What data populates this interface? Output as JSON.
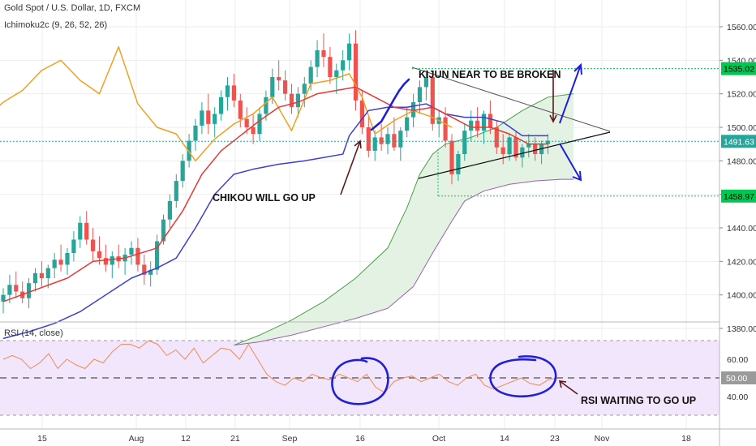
{
  "header": {
    "symbol_title": "Gold Spot / U.S. Dollar, 1D, FXCM",
    "indicator_title": "Ichimoku2c (9, 26, 52, 26)",
    "rsi_title": "RSI (14, close)"
  },
  "annotations": {
    "kijun_note": "KIJUN NEAR TO BE BROKEN",
    "chikou_note": "CHIKOU WILL GO UP",
    "rsi_note": "RSI WAITING TO GO UP"
  },
  "colors": {
    "bull": "#26a69a",
    "bear": "#ef5350",
    "tenkan": "#e53935",
    "kijun": "#3f3fcf",
    "chikou": "#f0a020",
    "kumo_fill": "#e3f2e3",
    "kumo_edge_a": "#43a047",
    "kumo_edge_b": "#9c5fb0",
    "rsi_line": "#f08a50",
    "rsi_band": "#f1e6fb",
    "level_line": "#00c853",
    "annotation_blue": "#1f1fd8",
    "annotation_brown": "#5a1a1a",
    "price_badge": "#26a69a",
    "level_badge": "#00c853"
  },
  "chart_data": [
    {
      "type": "candlestick",
      "title": "Gold Spot / U.S. Dollar, 1D, FXCM",
      "x_ticks": [
        "15",
        "Aug",
        "12",
        "21",
        "Sep",
        "16",
        "Oct",
        "14",
        "23",
        "Nov",
        "18"
      ],
      "y_ticks": [
        1380,
        1400,
        1420,
        1440,
        1460,
        1480,
        1500,
        1520,
        1540,
        1560
      ],
      "ylim": [
        1370,
        1570
      ],
      "grid": true,
      "current_price": "1491.63",
      "levels": [
        {
          "label": "1535.02",
          "value": 1535.02
        },
        {
          "label": "1458.97",
          "value": 1458.97
        }
      ],
      "candles": [
        [
          1396,
          1404,
          1389,
          1400
        ],
        [
          1400,
          1412,
          1395,
          1406
        ],
        [
          1406,
          1414,
          1398,
          1402
        ],
        [
          1402,
          1408,
          1395,
          1398
        ],
        [
          1398,
          1410,
          1392,
          1407
        ],
        [
          1407,
          1416,
          1402,
          1413
        ],
        [
          1413,
          1420,
          1405,
          1410
        ],
        [
          1410,
          1418,
          1404,
          1416
        ],
        [
          1416,
          1425,
          1410,
          1421
        ],
        [
          1421,
          1430,
          1414,
          1418
        ],
        [
          1418,
          1428,
          1412,
          1425
        ],
        [
          1425,
          1438,
          1420,
          1433
        ],
        [
          1433,
          1447,
          1428,
          1443
        ],
        [
          1443,
          1450,
          1430,
          1433
        ],
        [
          1433,
          1440,
          1420,
          1426
        ],
        [
          1426,
          1435,
          1418,
          1422
        ],
        [
          1422,
          1430,
          1414,
          1418
        ],
        [
          1418,
          1426,
          1410,
          1423
        ],
        [
          1423,
          1430,
          1416,
          1420
        ],
        [
          1420,
          1428,
          1412,
          1424
        ],
        [
          1424,
          1432,
          1418,
          1428
        ],
        [
          1428,
          1434,
          1414,
          1418
        ],
        [
          1418,
          1424,
          1406,
          1412
        ],
        [
          1412,
          1420,
          1405,
          1415
        ],
        [
          1415,
          1436,
          1412,
          1432
        ],
        [
          1432,
          1448,
          1430,
          1445
        ],
        [
          1445,
          1460,
          1440,
          1456
        ],
        [
          1456,
          1472,
          1452,
          1468
        ],
        [
          1468,
          1484,
          1464,
          1480
        ],
        [
          1480,
          1496,
          1476,
          1492
        ],
        [
          1492,
          1505,
          1486,
          1501
        ],
        [
          1501,
          1515,
          1496,
          1510
        ],
        [
          1510,
          1520,
          1496,
          1502
        ],
        [
          1502,
          1512,
          1494,
          1508
        ],
        [
          1508,
          1522,
          1504,
          1518
        ],
        [
          1518,
          1530,
          1510,
          1525
        ],
        [
          1525,
          1532,
          1512,
          1516
        ],
        [
          1516,
          1520,
          1500,
          1505
        ],
        [
          1505,
          1512,
          1496,
          1500
        ],
        [
          1500,
          1508,
          1490,
          1496
        ],
        [
          1496,
          1512,
          1492,
          1508
        ],
        [
          1508,
          1522,
          1504,
          1518
        ],
        [
          1518,
          1535,
          1514,
          1530
        ],
        [
          1530,
          1540,
          1522,
          1528
        ],
        [
          1528,
          1534,
          1516,
          1520
        ],
        [
          1520,
          1526,
          1508,
          1512
        ],
        [
          1512,
          1524,
          1506,
          1520
        ],
        [
          1520,
          1530,
          1512,
          1526
        ],
        [
          1526,
          1540,
          1522,
          1536
        ],
        [
          1536,
          1552,
          1530,
          1546
        ],
        [
          1546,
          1556,
          1536,
          1542
        ],
        [
          1542,
          1548,
          1526,
          1530
        ],
        [
          1530,
          1538,
          1520,
          1534
        ],
        [
          1534,
          1546,
          1528,
          1540
        ],
        [
          1540,
          1556,
          1534,
          1550
        ],
        [
          1550,
          1558,
          1510,
          1516
        ],
        [
          1516,
          1522,
          1496,
          1500
        ],
        [
          1500,
          1506,
          1482,
          1486
        ],
        [
          1486,
          1498,
          1480,
          1494
        ],
        [
          1494,
          1502,
          1486,
          1490
        ],
        [
          1490,
          1500,
          1484,
          1496
        ],
        [
          1496,
          1506,
          1486,
          1488
        ],
        [
          1488,
          1500,
          1480,
          1498
        ],
        [
          1498,
          1512,
          1494,
          1506
        ],
        [
          1506,
          1520,
          1500,
          1515
        ],
        [
          1515,
          1528,
          1508,
          1524
        ],
        [
          1524,
          1534,
          1516,
          1530
        ],
        [
          1530,
          1534,
          1498,
          1502
        ],
        [
          1502,
          1510,
          1494,
          1506
        ],
        [
          1506,
          1512,
          1488,
          1492
        ],
        [
          1492,
          1496,
          1466,
          1472
        ],
        [
          1472,
          1486,
          1468,
          1484
        ],
        [
          1484,
          1502,
          1480,
          1498
        ],
        [
          1498,
          1510,
          1492,
          1504
        ],
        [
          1504,
          1512,
          1494,
          1498
        ],
        [
          1498,
          1510,
          1490,
          1508
        ],
        [
          1508,
          1516,
          1496,
          1500
        ],
        [
          1500,
          1504,
          1484,
          1488
        ],
        [
          1488,
          1496,
          1478,
          1484
        ],
        [
          1484,
          1496,
          1480,
          1494
        ],
        [
          1494,
          1498,
          1480,
          1482
        ],
        [
          1482,
          1490,
          1476,
          1488
        ],
        [
          1488,
          1496,
          1482,
          1490
        ],
        [
          1490,
          1494,
          1480,
          1484
        ],
        [
          1484,
          1492,
          1478,
          1490
        ],
        [
          1490,
          1496,
          1484,
          1492
        ]
      ],
      "tenkan": [
        [
          0,
          1396
        ],
        [
          5,
          1403
        ],
        [
          10,
          1410
        ],
        [
          14,
          1420
        ],
        [
          19,
          1422
        ],
        [
          24,
          1428
        ],
        [
          28,
          1450
        ],
        [
          31,
          1472
        ],
        [
          34,
          1486
        ],
        [
          37,
          1495
        ],
        [
          40,
          1504
        ],
        [
          43,
          1512
        ],
        [
          46,
          1515
        ],
        [
          49,
          1520
        ],
        [
          52,
          1522
        ],
        [
          55,
          1524
        ],
        [
          58,
          1518
        ],
        [
          61,
          1512
        ],
        [
          64,
          1510
        ],
        [
          67,
          1512
        ],
        [
          70,
          1506
        ],
        [
          73,
          1500
        ],
        [
          76,
          1500
        ],
        [
          79,
          1496
        ],
        [
          82,
          1490
        ],
        [
          85,
          1490
        ]
      ],
      "kijun": [
        [
          0,
          1374
        ],
        [
          4,
          1378
        ],
        [
          8,
          1383
        ],
        [
          12,
          1390
        ],
        [
          16,
          1400
        ],
        [
          20,
          1410
        ],
        [
          24,
          1416
        ],
        [
          27,
          1422
        ],
        [
          30,
          1440
        ],
        [
          33,
          1460
        ],
        [
          36,
          1472
        ],
        [
          39,
          1475
        ],
        [
          43,
          1478
        ],
        [
          47,
          1480
        ],
        [
          50,
          1482
        ],
        [
          53,
          1484
        ],
        [
          54,
          1495
        ],
        [
          57,
          1510
        ],
        [
          60,
          1512
        ],
        [
          63,
          1512
        ],
        [
          66,
          1514
        ],
        [
          69,
          1508
        ],
        [
          72,
          1506
        ],
        [
          75,
          1506
        ],
        [
          78,
          1503
        ],
        [
          81,
          1495
        ],
        [
          85,
          1495
        ]
      ],
      "chikou": [
        [
          -2,
          1508
        ],
        [
          0,
          1515
        ],
        [
          3,
          1522
        ],
        [
          6,
          1534
        ],
        [
          9,
          1540
        ],
        [
          12,
          1528
        ],
        [
          15,
          1520
        ],
        [
          18,
          1548
        ],
        [
          21,
          1514
        ],
        [
          24,
          1500
        ],
        [
          27,
          1496
        ],
        [
          30,
          1480
        ],
        [
          33,
          1493
        ],
        [
          36,
          1502
        ],
        [
          39,
          1508
        ],
        [
          42,
          1518
        ],
        [
          45,
          1498
        ],
        [
          48,
          1526
        ],
        [
          51,
          1528
        ],
        [
          54,
          1532
        ],
        [
          56,
          1518
        ],
        [
          58,
          1496
        ],
        [
          61,
          1504
        ],
        [
          64,
          1510
        ],
        [
          67,
          1506
        ],
        [
          70,
          1500
        ]
      ],
      "kumo_a": [
        [
          36,
          1370
        ],
        [
          40,
          1376
        ],
        [
          45,
          1385
        ],
        [
          50,
          1396
        ],
        [
          55,
          1410
        ],
        [
          60,
          1428
        ],
        [
          63,
          1452
        ],
        [
          65,
          1472
        ],
        [
          67,
          1484
        ],
        [
          69,
          1490
        ],
        [
          73,
          1494
        ],
        [
          77,
          1500
        ],
        [
          81,
          1510
        ],
        [
          85,
          1518
        ],
        [
          89,
          1520
        ]
      ],
      "kumo_b": [
        [
          36,
          1370
        ],
        [
          40,
          1372
        ],
        [
          45,
          1376
        ],
        [
          50,
          1381
        ],
        [
          55,
          1386
        ],
        [
          60,
          1392
        ],
        [
          64,
          1405
        ],
        [
          67,
          1425
        ],
        [
          70,
          1444
        ],
        [
          72,
          1456
        ],
        [
          75,
          1462
        ],
        [
          79,
          1466
        ],
        [
          83,
          1468
        ],
        [
          87,
          1469
        ],
        [
          89,
          1469
        ]
      ]
    },
    {
      "type": "line",
      "title": "RSI (14, close)",
      "y_ticks": [
        40,
        50,
        60
      ],
      "ylim": [
        22,
        78
      ],
      "current_value": "50.00",
      "values": [
        [
          0,
          60
        ],
        [
          2,
          62
        ],
        [
          4,
          60
        ],
        [
          6,
          55
        ],
        [
          8,
          58
        ],
        [
          10,
          63
        ],
        [
          12,
          55
        ],
        [
          14,
          60
        ],
        [
          16,
          57
        ],
        [
          18,
          55
        ],
        [
          20,
          60
        ],
        [
          22,
          58
        ],
        [
          24,
          64
        ],
        [
          26,
          68
        ],
        [
          28,
          68
        ],
        [
          30,
          66
        ],
        [
          32,
          70
        ],
        [
          34,
          68
        ],
        [
          36,
          62
        ],
        [
          38,
          65
        ],
        [
          40,
          60
        ],
        [
          42,
          66
        ],
        [
          44,
          58
        ],
        [
          46,
          62
        ],
        [
          48,
          66
        ],
        [
          50,
          65
        ],
        [
          52,
          60
        ],
        [
          54,
          68
        ],
        [
          56,
          60
        ],
        [
          58,
          52
        ],
        [
          60,
          48
        ],
        [
          62,
          46
        ],
        [
          64,
          50
        ],
        [
          66,
          48
        ],
        [
          68,
          52
        ],
        [
          70,
          50
        ],
        [
          72,
          49
        ],
        [
          74,
          52
        ],
        [
          76,
          50
        ],
        [
          78,
          48
        ],
        [
          80,
          52
        ],
        [
          82,
          45
        ],
        [
          84,
          42
        ],
        [
          86,
          48
        ],
        [
          88,
          50
        ],
        [
          90,
          51
        ],
        [
          92,
          48
        ],
        [
          94,
          50
        ],
        [
          96,
          52
        ],
        [
          98,
          48
        ],
        [
          100,
          46
        ],
        [
          102,
          50
        ],
        [
          104,
          52
        ],
        [
          106,
          46
        ],
        [
          108,
          44
        ],
        [
          110,
          46
        ],
        [
          112,
          48
        ],
        [
          114,
          50
        ],
        [
          116,
          47
        ],
        [
          118,
          46
        ],
        [
          120,
          49
        ],
        [
          122,
          50
        ]
      ]
    }
  ]
}
